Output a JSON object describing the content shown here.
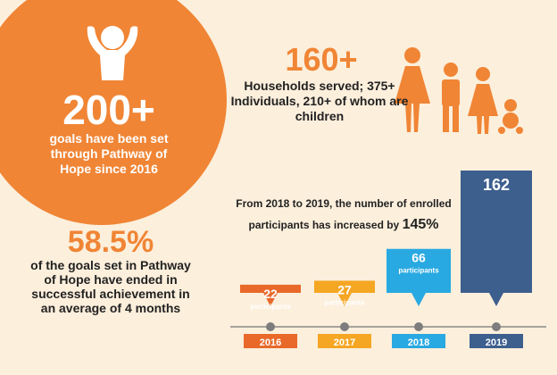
{
  "colors": {
    "background": "#fcefdc",
    "orange": "#f08535",
    "dark_orange": "#e8692a",
    "yellow_orange": "#f5a623",
    "light_blue": "#29a9e1",
    "dark_blue": "#3d5f8e"
  },
  "icons": {
    "child": "child-arms-up-icon",
    "family": "family-icon"
  },
  "goals": {
    "number": "200+",
    "description": "goals have been set through Pathway of Hope since 2016"
  },
  "households": {
    "number": "160+",
    "description": "Households served; 375+ Individuals, 210+ of whom are children"
  },
  "success": {
    "number": "58.5%",
    "description": "of the goals set in Pathway of Hope have ended in successful achievement in an average of 4 months"
  },
  "increase": {
    "text": "From 2018 to 2019, the number of enrolled participants has increased by ",
    "percent": "145%"
  },
  "chart_data": {
    "type": "bar",
    "categories": [
      "2016",
      "2017",
      "2018",
      "2019"
    ],
    "values": [
      22,
      27,
      66,
      162
    ],
    "value_labels": [
      "22",
      "27",
      "66",
      "162"
    ],
    "unit_label": "participants",
    "colors": [
      "#e8692a",
      "#f5a623",
      "#29a9e1",
      "#3d5f8e"
    ]
  }
}
